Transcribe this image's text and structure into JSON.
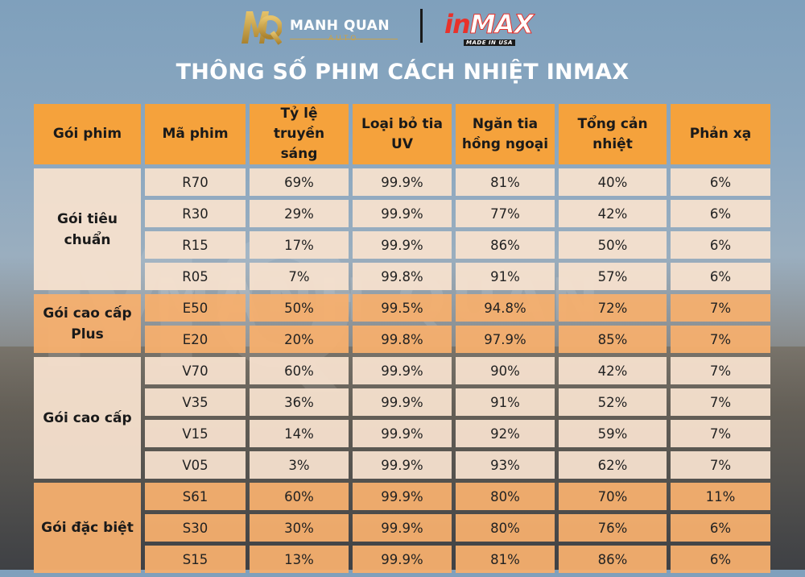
{
  "brand": {
    "name": "MANH QUAN",
    "sub": "AUTO",
    "partner_logo_in": "in",
    "partner_logo_max": "MAX",
    "partner_tagline": "MADE IN USA",
    "gold": "#c9a24a",
    "red": "#e8322b"
  },
  "watermark": {
    "text": "MANH QUAN",
    "mark": "MQ"
  },
  "title": "THÔNG SỐ PHIM CÁCH NHIỆT INMAX",
  "colors": {
    "header": "#f5a23c",
    "row_light": "#f6e0ce",
    "row_dark": "#f5af6e"
  },
  "table": {
    "headers": [
      "Gói phim",
      "Mã phim",
      "Tỷ lệ truyền sáng",
      "Loại bỏ tia UV",
      "Ngăn tia hồng ngoại",
      "Tổng cản nhiệt",
      "Phản xạ"
    ],
    "groups": [
      {
        "name": "Gói tiêu chuẩn",
        "rows": [
          [
            "R70",
            "69%",
            "99.9%",
            "81%",
            "40%",
            "6%"
          ],
          [
            "R30",
            "29%",
            "99.9%",
            "77%",
            "42%",
            "6%"
          ],
          [
            "R15",
            "17%",
            "99.9%",
            "86%",
            "50%",
            "6%"
          ],
          [
            "R05",
            "7%",
            "99.8%",
            "91%",
            "57%",
            "6%"
          ]
        ]
      },
      {
        "name": "Gói cao cấp Plus",
        "rows": [
          [
            "E50",
            "50%",
            "99.5%",
            "94.8%",
            "72%",
            "7%"
          ],
          [
            "E20",
            "20%",
            "99.8%",
            "97.9%",
            "85%",
            "7%"
          ]
        ]
      },
      {
        "name": "Gói cao cấp",
        "rows": [
          [
            "V70",
            "60%",
            "99.9%",
            "90%",
            "42%",
            "7%"
          ],
          [
            "V35",
            "36%",
            "99.9%",
            "91%",
            "52%",
            "7%"
          ],
          [
            "V15",
            "14%",
            "99.9%",
            "92%",
            "59%",
            "7%"
          ],
          [
            "V05",
            "3%",
            "99.9%",
            "93%",
            "62%",
            "7%"
          ]
        ]
      },
      {
        "name": "Gói đặc biệt",
        "rows": [
          [
            "S61",
            "60%",
            "99.9%",
            "80%",
            "70%",
            "11%"
          ],
          [
            "S30",
            "30%",
            "99.9%",
            "80%",
            "76%",
            "6%"
          ],
          [
            "S15",
            "13%",
            "99.9%",
            "81%",
            "86%",
            "6%"
          ]
        ]
      }
    ]
  }
}
